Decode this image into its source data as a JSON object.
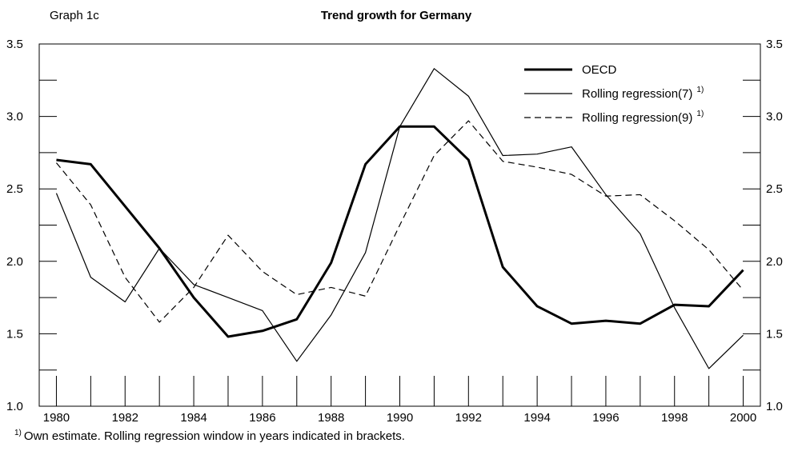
{
  "chart_data": {
    "type": "line",
    "label": "Graph 1c",
    "title": "Trend growth for Germany",
    "x": [
      1980,
      1981,
      1982,
      1983,
      1984,
      1985,
      1986,
      1987,
      1988,
      1989,
      1990,
      1991,
      1992,
      1993,
      1994,
      1995,
      1996,
      1997,
      1998,
      1999,
      2000
    ],
    "series": [
      {
        "name": "OECD",
        "color": "#000000",
        "width": 3,
        "dash": false,
        "values": [
          2.7,
          2.67,
          2.38,
          2.09,
          1.75,
          1.48,
          1.52,
          1.6,
          1.99,
          2.67,
          2.93,
          2.93,
          2.7,
          1.96,
          1.69,
          1.57,
          1.59,
          1.57,
          1.7,
          1.69,
          1.94
        ]
      },
      {
        "name": "Rolling regression(7)",
        "note_ref": "1)",
        "color": "#000000",
        "width": 1.2,
        "dash": false,
        "values": [
          2.47,
          1.89,
          1.72,
          2.09,
          1.84,
          1.75,
          1.66,
          1.31,
          1.63,
          2.06,
          2.93,
          3.33,
          3.14,
          2.73,
          2.74,
          2.79,
          2.46,
          2.19,
          1.68,
          1.26,
          1.49
        ]
      },
      {
        "name": "Rolling regression(9)",
        "note_ref": "1)",
        "color": "#000000",
        "width": 1.2,
        "dash": true,
        "values": [
          2.68,
          2.39,
          1.89,
          1.58,
          1.82,
          2.18,
          1.93,
          1.77,
          1.82,
          1.76,
          2.25,
          2.73,
          2.97,
          2.69,
          2.65,
          2.6,
          2.45,
          2.46,
          2.28,
          2.08,
          1.8
        ]
      }
    ],
    "xlim": [
      1979.5,
      2000.5
    ],
    "xticks": [
      1980,
      1982,
      1984,
      1986,
      1988,
      1990,
      1992,
      1994,
      1996,
      1998,
      2000
    ],
    "xminorticks": [
      1981,
      1983,
      1985,
      1987,
      1989,
      1991,
      1993,
      1995,
      1997,
      1999
    ],
    "ylim": [
      1.0,
      3.5
    ],
    "yticks": [
      {
        "value": 1.0,
        "label": "1.0"
      },
      {
        "value": 1.5,
        "label": "1.5"
      },
      {
        "value": 2.0,
        "label": "2.0"
      },
      {
        "value": 2.5,
        "label": "2.5"
      },
      {
        "value": 3.0,
        "label": "3.0"
      },
      {
        "value": 3.5,
        "label": "3.5"
      }
    ],
    "yminorticks": [
      1.25,
      1.75,
      2.25,
      2.75,
      3.25
    ],
    "footnote": {
      "marker": "1)",
      "text": "Own estimate. Rolling regression window in years indicated in brackets."
    }
  }
}
